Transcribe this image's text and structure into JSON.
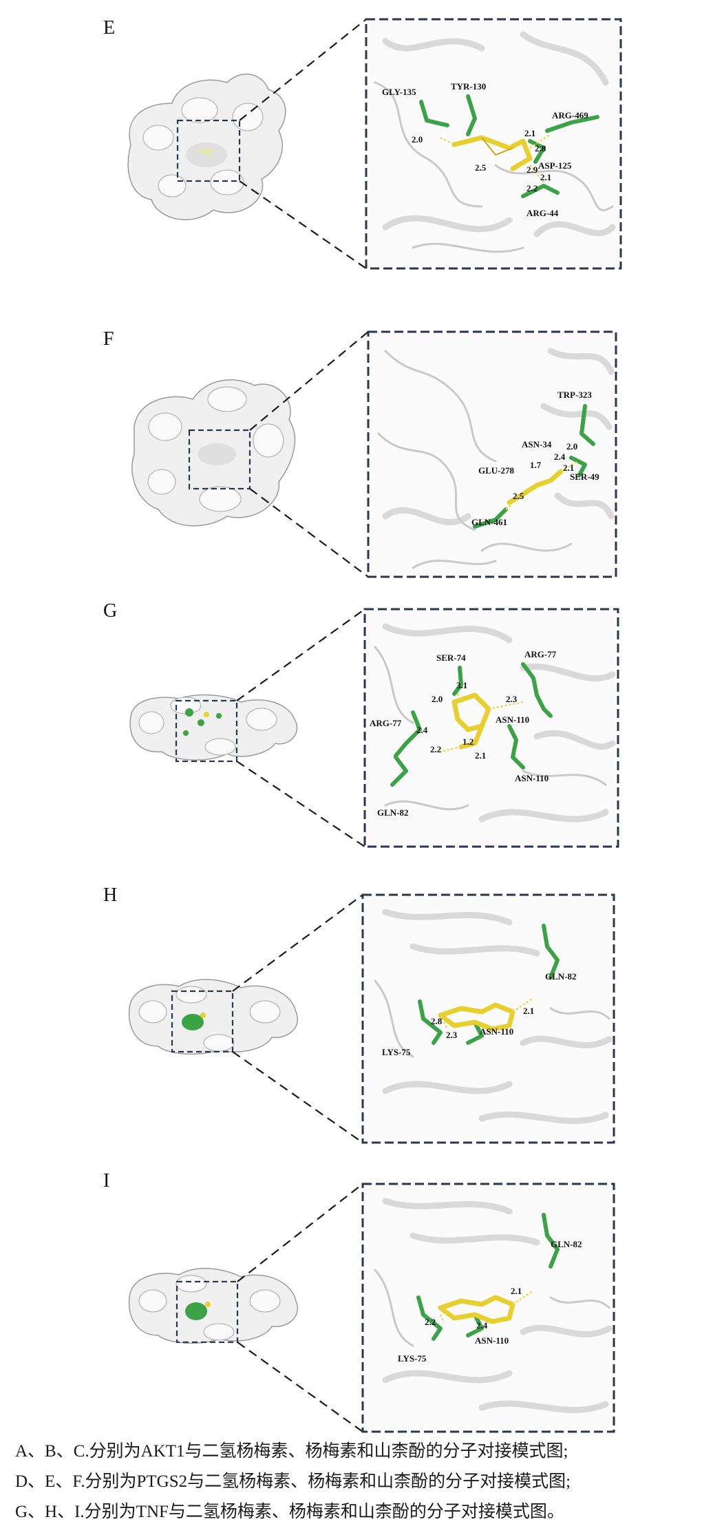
{
  "panels": [
    {
      "letter": "E",
      "residues": [
        "GLY-135",
        "TYR-130",
        "ARG-469",
        "ASP-125",
        "ARG-44"
      ],
      "distances": [
        "2.0",
        "2.5",
        "2.1",
        "2.8",
        "2.9",
        "2.1",
        "2.2"
      ]
    },
    {
      "letter": "F",
      "residues": [
        "TRP-323",
        "ASN-34",
        "GLU-278",
        "SER-49",
        "GLN-461"
      ],
      "distances": [
        "2.0",
        "2.4",
        "1.7",
        "2.1",
        "2.5"
      ]
    },
    {
      "letter": "G",
      "residues": [
        "SER-74",
        "ARG-77",
        "ARG-77",
        "ASN-110",
        "ASN-110",
        "GLN-82"
      ],
      "distances": [
        "3.1",
        "2.0",
        "2.3",
        "2.4",
        "1.2",
        "2.2",
        "2.1"
      ]
    },
    {
      "letter": "H",
      "residues": [
        "GLN-82",
        "ASN-110",
        "LYS-75"
      ],
      "distances": [
        "2.8",
        "2.3",
        "2.1"
      ]
    },
    {
      "letter": "I",
      "residues": [
        "GLN-82",
        "ASN-110",
        "LYS-75"
      ],
      "distances": [
        "2.1",
        "2.2",
        "2.4"
      ]
    }
  ],
  "caption": [
    "A、B、C.分别为AKT1与二氢杨梅素、杨梅素和山柰酚的分子对接模式图;",
    "D、E、F.分别为PTGS2与二氢杨梅素、杨梅素和山柰酚的分子对接模式图;",
    "G、H、I.分别为TNF与二氢杨梅素、杨梅素和山柰酚的分子对接模式图。"
  ]
}
